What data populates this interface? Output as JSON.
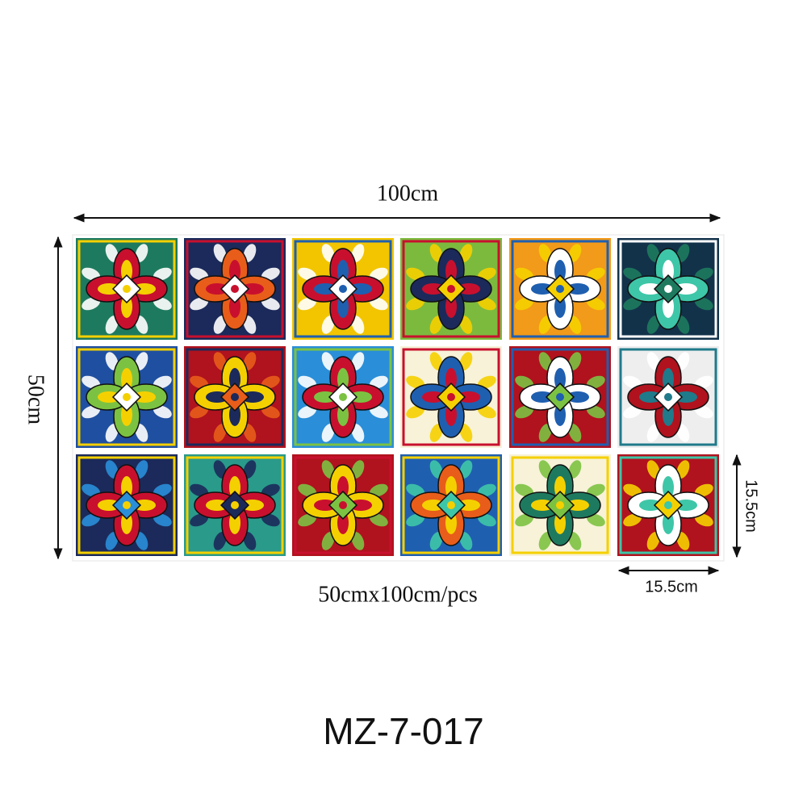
{
  "dimensions": {
    "width_label": "100cm",
    "height_label": "50cm",
    "tile_height_label": "15.5cm",
    "tile_width_label": "15.5cm",
    "caption": "50cmx100cm/pcs"
  },
  "model": "MZ-7-017"
}
